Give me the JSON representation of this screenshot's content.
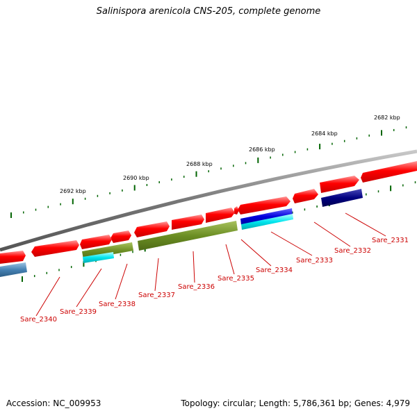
{
  "title": "Salinispora arenicola CNS-205, complete genome",
  "footer": {
    "accession": "Accession: NC_009953",
    "summary": "Topology: circular; Length: 5,786,361 bp; Genes: 4,979"
  },
  "scale_labels": [
    "2682 kbp",
    "2684 kbp",
    "2686 kbp",
    "2688 kbp",
    "2690 kbp",
    "2692 kbp"
  ],
  "gene_labels": [
    "Sare_2331",
    "Sare_2332",
    "Sare_2333",
    "Sare_2334",
    "Sare_2335",
    "Sare_2336",
    "Sare_2337",
    "Sare_2338",
    "Sare_2339",
    "Sare_2340"
  ],
  "colors": {
    "backbone": "#777777",
    "cds": "#ff0000",
    "feature_olive": "#6b8e23",
    "feature_blue": "#0000cc",
    "feature_cyan": "#00e5ee",
    "feature_navy": "#000080",
    "feature_steel": "#4682b4",
    "tick": "#006400",
    "label": "#cc0000"
  }
}
